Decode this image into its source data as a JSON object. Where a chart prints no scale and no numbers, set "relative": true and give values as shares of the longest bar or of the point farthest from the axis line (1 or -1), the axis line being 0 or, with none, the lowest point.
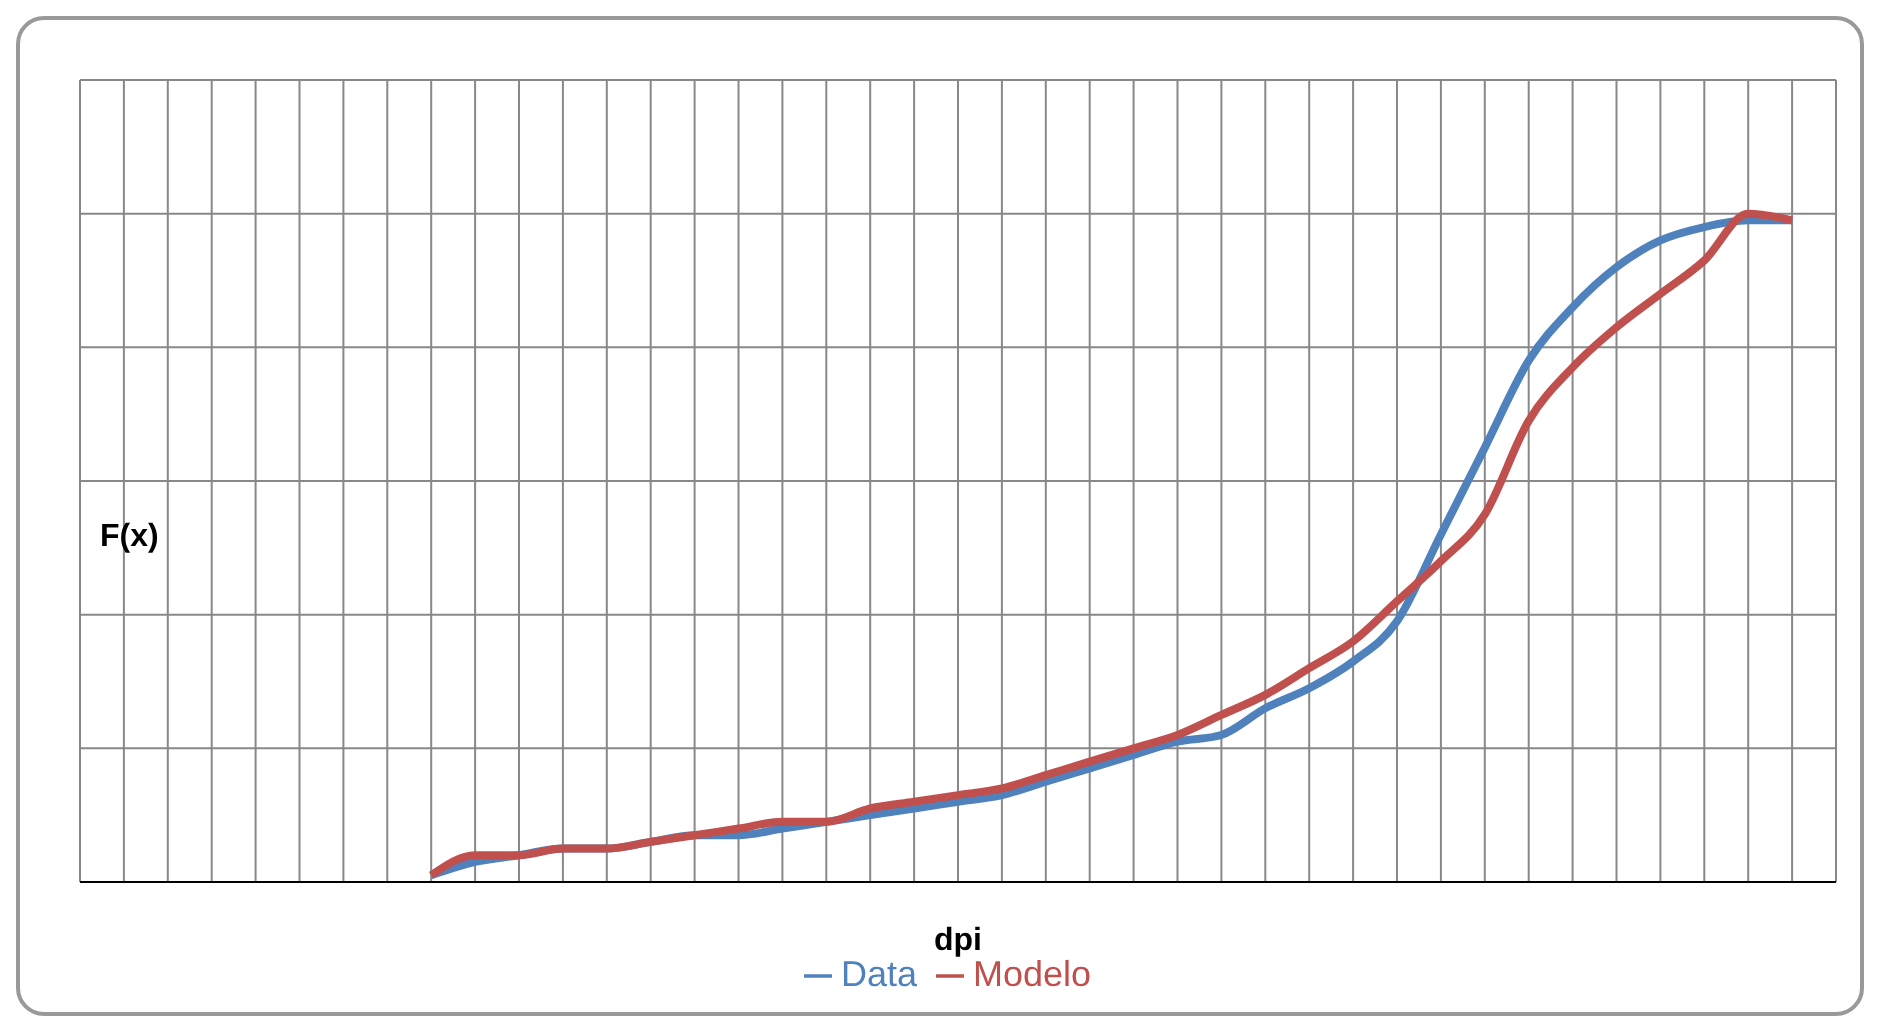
{
  "chart_data": {
    "type": "line",
    "relative": true,
    "xlabel": "dpi",
    "ylabel": "F(x)",
    "categories": [
      null,
      null,
      null,
      null,
      null,
      null,
      null,
      null,
      null,
      null,
      null,
      null,
      null,
      null,
      null,
      null,
      null,
      null,
      null,
      null,
      null,
      null,
      null,
      null,
      null,
      null,
      null,
      null,
      null,
      null,
      null,
      null,
      null,
      null,
      null,
      null,
      null,
      null,
      null,
      null,
      null
    ],
    "series": [
      {
        "name": "Data",
        "color": "#4f81bd",
        "values": [
          null,
          null,
          null,
          null,
          null,
          null,
          null,
          null,
          0.01,
          0.03,
          0.04,
          0.05,
          0.05,
          0.06,
          0.07,
          0.07,
          0.08,
          0.09,
          0.1,
          0.11,
          0.12,
          0.13,
          0.15,
          0.17,
          0.19,
          0.21,
          0.22,
          0.26,
          0.29,
          0.33,
          0.39,
          0.52,
          0.65,
          0.78,
          0.86,
          0.92,
          0.96,
          0.98,
          0.99,
          0.99,
          null
        ]
      },
      {
        "name": "Modelo",
        "color": "#c0504d",
        "values": [
          null,
          null,
          null,
          null,
          null,
          null,
          null,
          null,
          0.01,
          0.04,
          0.04,
          0.05,
          0.05,
          0.06,
          0.07,
          0.08,
          0.09,
          0.09,
          0.11,
          0.12,
          0.13,
          0.14,
          0.16,
          0.18,
          0.2,
          0.22,
          0.25,
          0.28,
          0.32,
          0.36,
          0.42,
          0.48,
          0.55,
          0.69,
          0.77,
          0.83,
          0.88,
          0.93,
          1,
          0.99,
          null
        ]
      }
    ],
    "grid": true,
    "legend": "bottom",
    "marker": "none",
    "line_style": "solid"
  }
}
